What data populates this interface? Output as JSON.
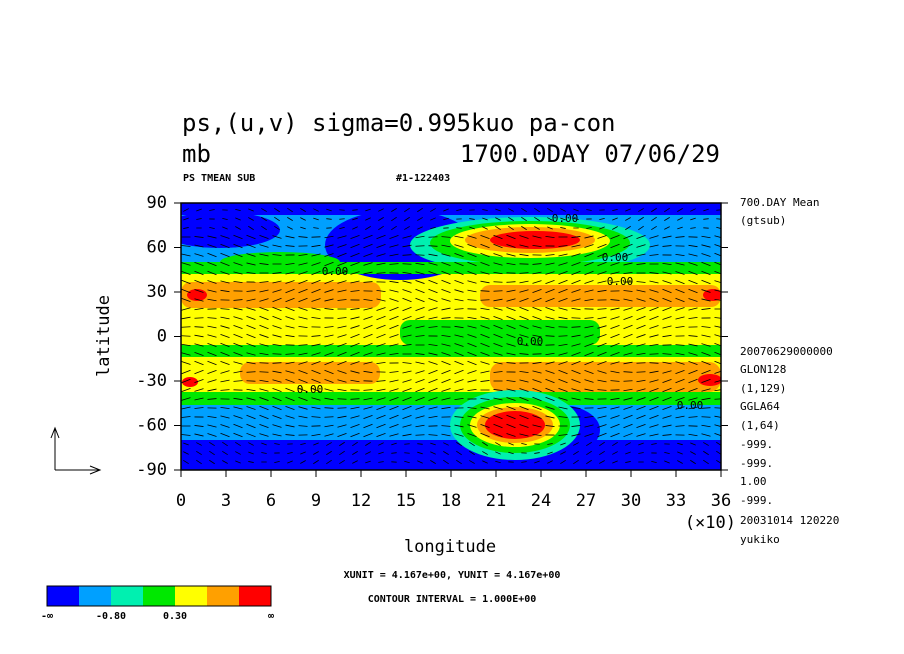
{
  "chart_data": {
    "type": "contour",
    "title": "ps,(u,v) sigma=0.995kuo pa-con",
    "units": "mb",
    "time_label": "1700.0DAY 07/06/29",
    "subtitle_left": "PS TMEAN SUB",
    "subtitle_right": "#1-122403",
    "xlabel": "longitude",
    "ylabel": "latitude",
    "x_multiplier": "(×10)",
    "xlim": [
      0,
      36
    ],
    "xticks": [
      0,
      3,
      6,
      9,
      12,
      15,
      18,
      21,
      24,
      27,
      30,
      33,
      36
    ],
    "ylim": [
      -90,
      90
    ],
    "yticks": [
      -90,
      -60,
      -30,
      0,
      30,
      60,
      90
    ],
    "grid": false,
    "side_notes": [
      "700.DAY Mean",
      "(gtsub)",
      "20070629000000",
      "GLON128",
      "(1,129)",
      "GGLA64",
      "(1,64)",
      "-999.",
      "-999.",
      "1.00",
      "-999.",
      "20031014 120220",
      "yukiko"
    ],
    "contour_labels": [
      "0.00",
      "0.00",
      "0.00",
      "0.00",
      "0.00",
      "0.00",
      "0.00"
    ],
    "unit_note": "XUNIT = 4.167e+00, YUNIT = 4.167e+00",
    "interval_note": "CONTOUR INTERVAL = 1.000E+00",
    "colorbar": {
      "colors": [
        "#0000ff",
        "#00a0ff",
        "#00f0b0",
        "#00e800",
        "#ffff00",
        "#ffa000",
        "#ff0000"
      ],
      "labels": [
        "-∞",
        "-0.80",
        "0.30",
        "∞"
      ]
    }
  }
}
